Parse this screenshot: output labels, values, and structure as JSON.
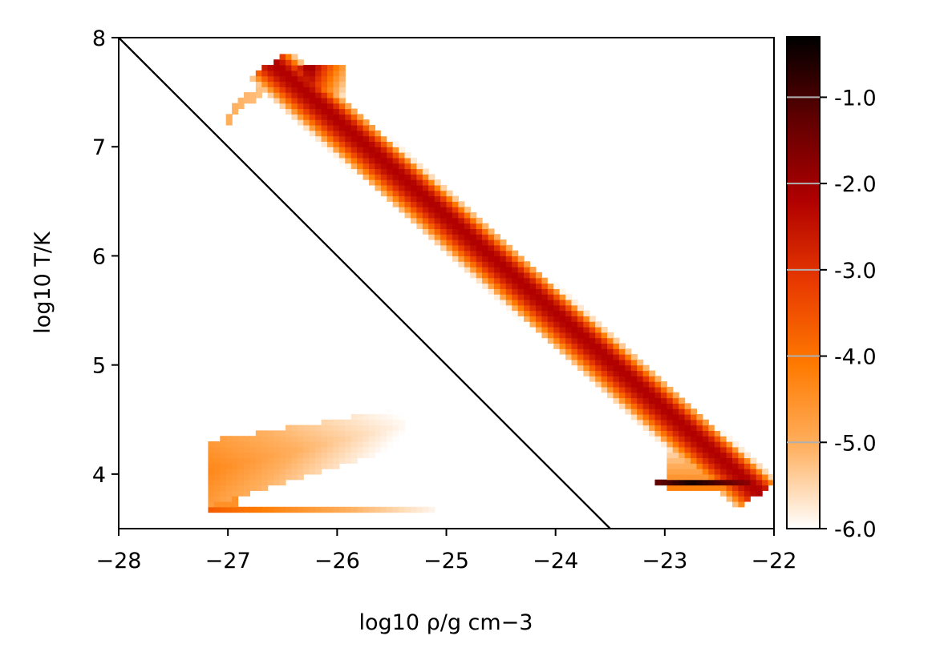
{
  "chart_data": {
    "type": "heatmap",
    "xlabel": "log10 ρ/g cm−3",
    "ylabel": "log10 T/K",
    "xlim": [
      -28,
      -22
    ],
    "ylim": [
      3.5,
      8
    ],
    "x_ticks": [
      "−28",
      "−27",
      "−26",
      "−25",
      "−24",
      "−23",
      "−22"
    ],
    "x_tick_values": [
      -28,
      -27,
      -26,
      -25,
      -24,
      -23,
      -22
    ],
    "y_ticks": [
      "4",
      "5",
      "6",
      "7",
      "8"
    ],
    "y_tick_values": [
      4,
      5,
      6,
      7,
      8
    ],
    "grid": false,
    "colorbar": {
      "range": [
        -6.0,
        -0.3
      ],
      "ticks": [
        "-1.0",
        "-2.0",
        "-3.0",
        "-4.0",
        "-5.0",
        "-6.0"
      ],
      "tick_values": [
        -1.0,
        -2.0,
        -3.0,
        -4.0,
        -5.0,
        -6.0
      ],
      "colormap": "gist_heat_r",
      "colors": [
        "#ffffff",
        "#ffb060",
        "#ff7a00",
        "#e83a00",
        "#b00000",
        "#600000",
        "#000000"
      ]
    },
    "line": {
      "color": "#000000",
      "x": [
        -28,
        -23.5
      ],
      "y": [
        8,
        3.5
      ]
    },
    "regions": [
      {
        "name": "main band",
        "x": [
          -26.5,
          -22.2
        ],
        "y": [
          7.7,
          3.9
        ],
        "peak": -2.2
      },
      {
        "name": "upper cap",
        "x": [
          -26.6,
          -25.9
        ],
        "y": [
          7.75,
          7.35
        ],
        "peak": -1.8
      },
      {
        "name": "upper arc",
        "x": [
          -27.0,
          -26.5
        ],
        "y": [
          7.2,
          7.6
        ],
        "peak": -5.0
      },
      {
        "name": "dense cold knot",
        "x": [
          -23.1,
          -22.2
        ],
        "y": [
          3.95,
          3.9
        ],
        "peak": -0.5
      },
      {
        "name": "low-temperature wedge",
        "x": [
          -27.2,
          -25.4
        ],
        "y": [
          3.7,
          4.6
        ],
        "peak": -4.3
      },
      {
        "name": "floor strip",
        "x": [
          -27.2,
          -25.1
        ],
        "y": [
          3.7,
          3.7
        ],
        "peak": -3.6
      }
    ]
  }
}
